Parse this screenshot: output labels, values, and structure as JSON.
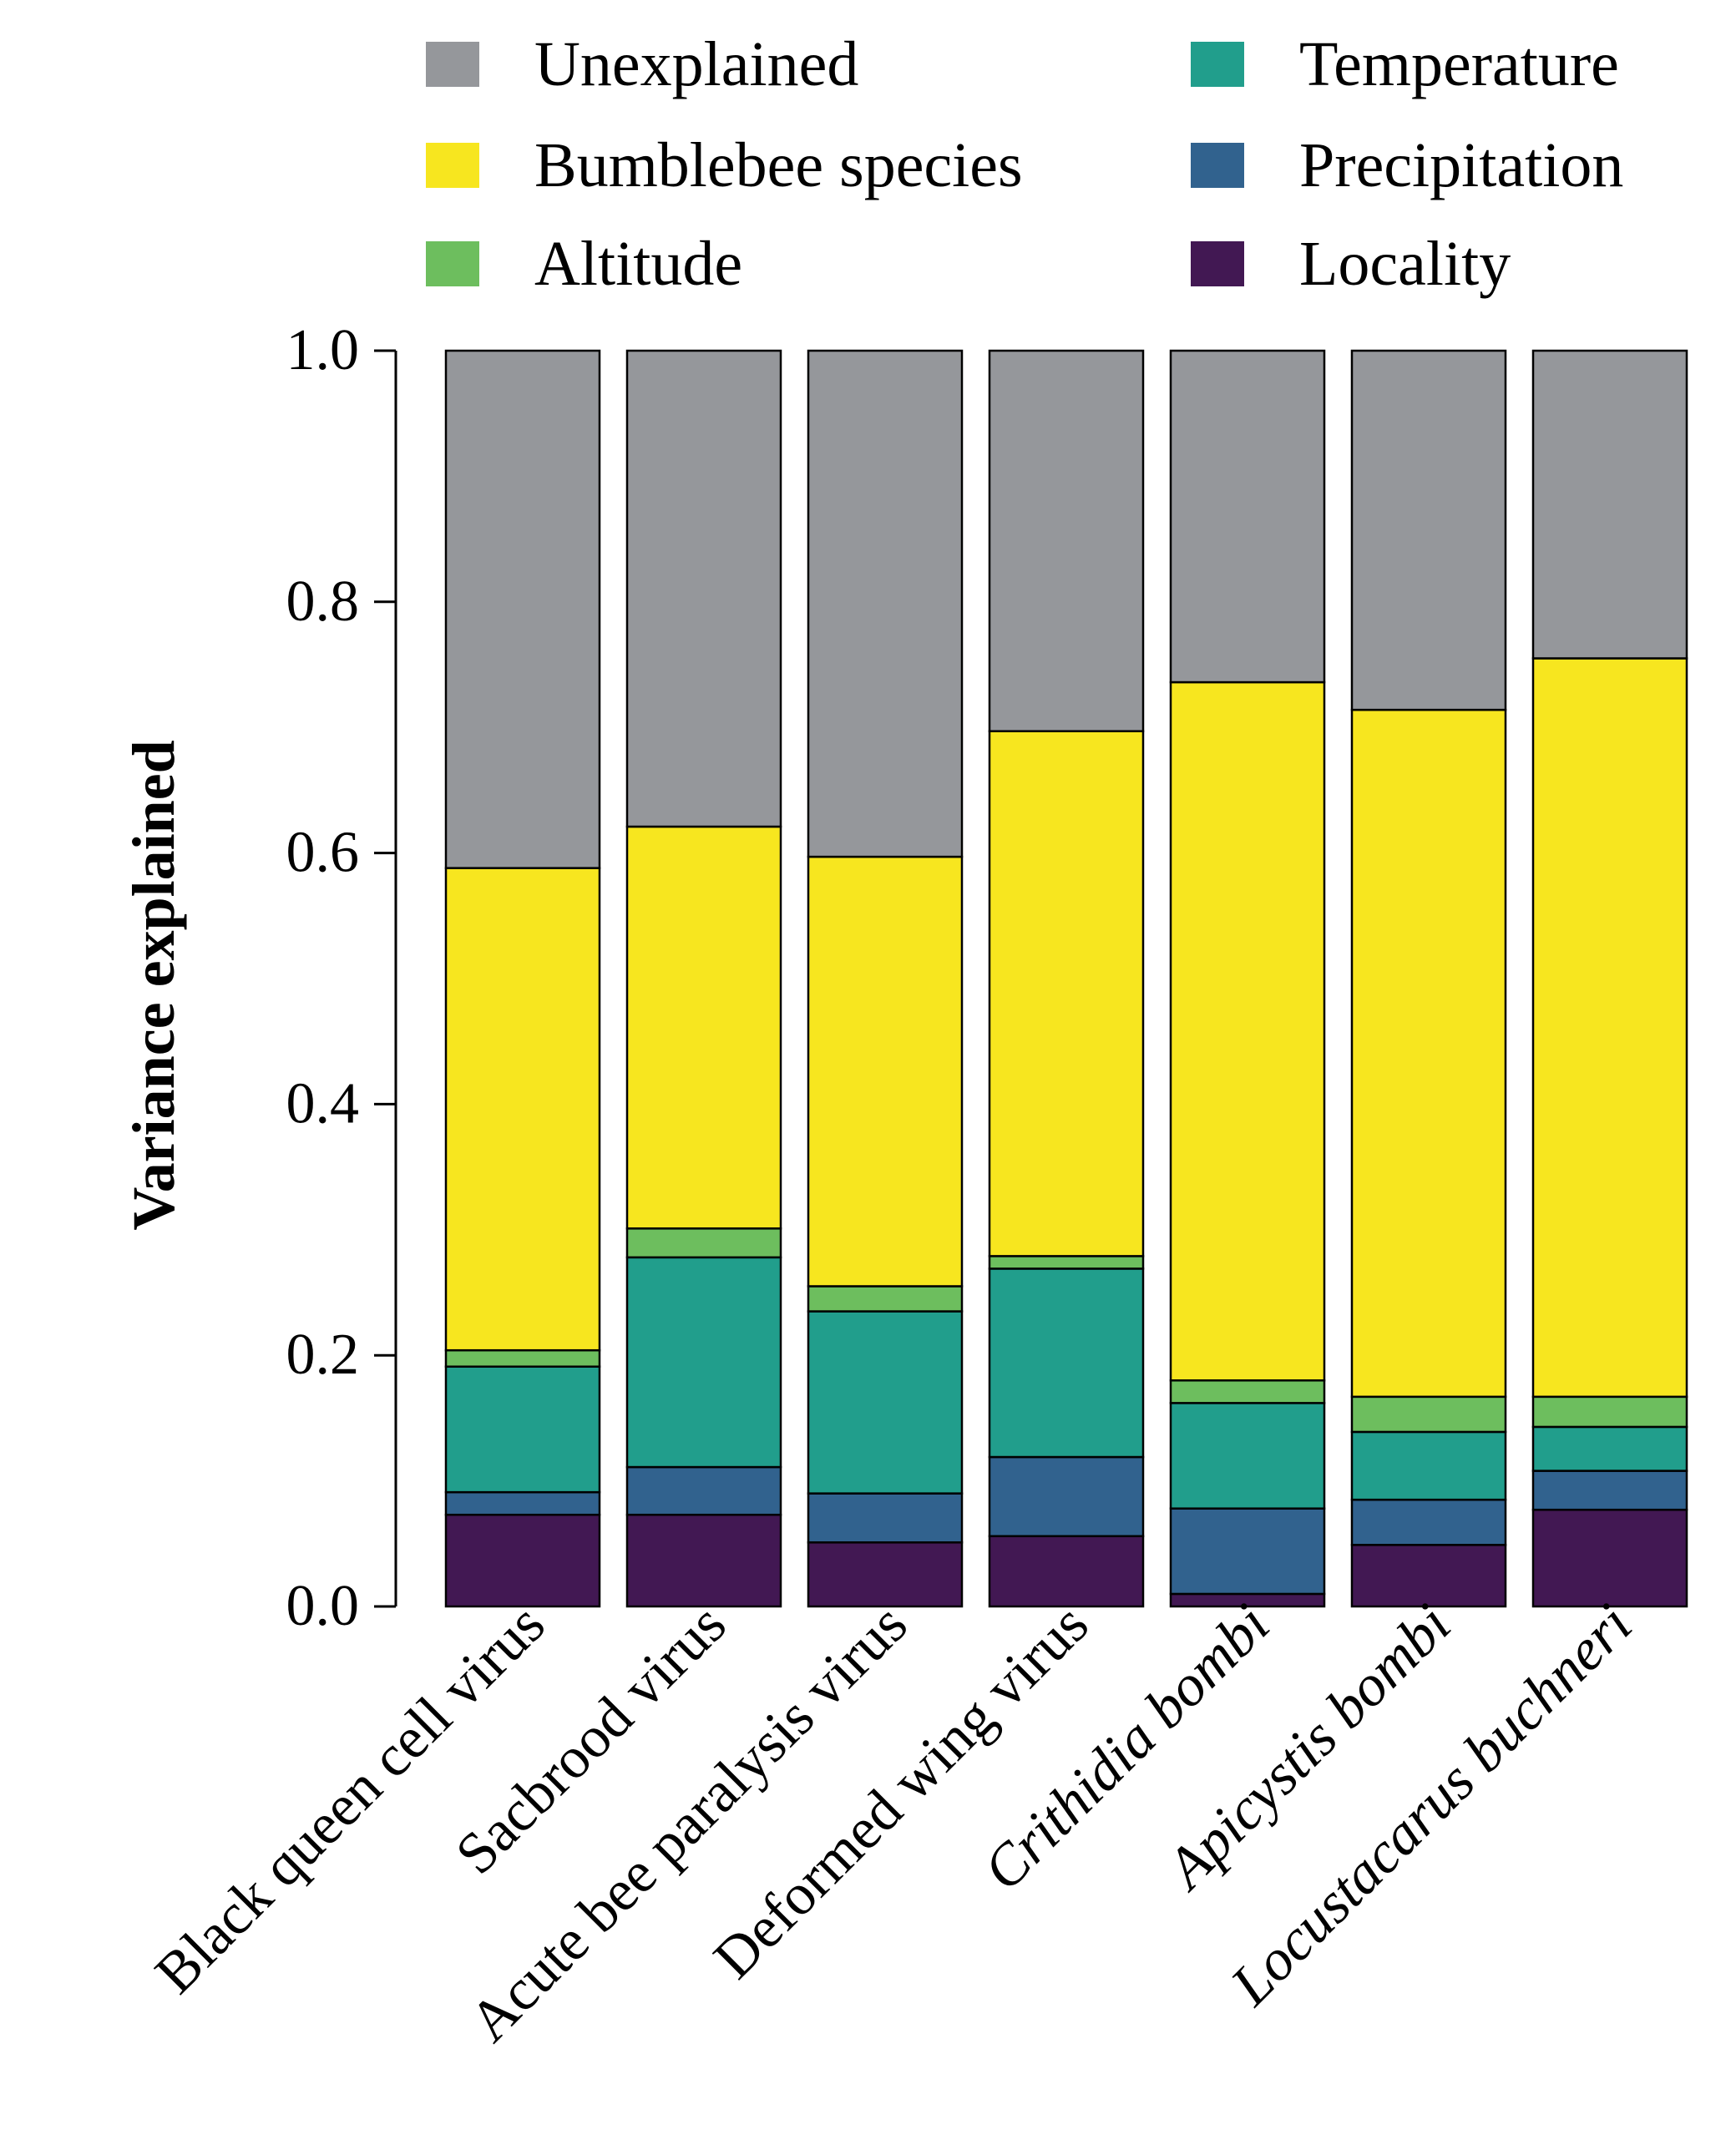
{
  "chart_data": {
    "type": "bar",
    "stacked": true,
    "title": "",
    "xlabel": "",
    "ylabel": "Variance explained",
    "ylim": [
      0,
      1.0
    ],
    "yticks": [
      "0.0",
      "0.2",
      "0.4",
      "0.6",
      "0.8",
      "1.0"
    ],
    "legend_position": "top",
    "categories": [
      "Black queen cell virus",
      "Sacbrood virus",
      "Acute bee paralysis virus",
      "Deformed wing virus",
      "Crithidia bombi",
      "Apicystis bombi",
      "Locustacarus buchneri"
    ],
    "italic_categories": [
      "Crithidia bombi",
      "Apicystis bombi",
      "Locustacarus buchneri"
    ],
    "series": [
      {
        "name": "Locality",
        "color": "#421853",
        "values": [
          0.073,
          0.073,
          0.051,
          0.056,
          0.01,
          0.049,
          0.077
        ]
      },
      {
        "name": "Precipitation",
        "color": "#31628e",
        "values": [
          0.018,
          0.038,
          0.039,
          0.063,
          0.068,
          0.036,
          0.031
        ]
      },
      {
        "name": "Temperature",
        "color": "#219e8c",
        "values": [
          0.1,
          0.167,
          0.145,
          0.15,
          0.084,
          0.054,
          0.035
        ]
      },
      {
        "name": "Altitude",
        "color": "#6dbe5e",
        "values": [
          0.013,
          0.023,
          0.02,
          0.01,
          0.018,
          0.028,
          0.024
        ]
      },
      {
        "name": "Bumblebee species",
        "color": "#f7e61f",
        "values": [
          0.384,
          0.32,
          0.342,
          0.418,
          0.556,
          0.547,
          0.588
        ]
      },
      {
        "name": "Unexplained",
        "color": "#95979b",
        "values": [
          0.412,
          0.379,
          0.403,
          0.303,
          0.264,
          0.286,
          0.245
        ]
      }
    ],
    "legend_order": [
      "Unexplained",
      "Bumblebee species",
      "Altitude",
      "Temperature",
      "Precipitation",
      "Locality"
    ]
  }
}
